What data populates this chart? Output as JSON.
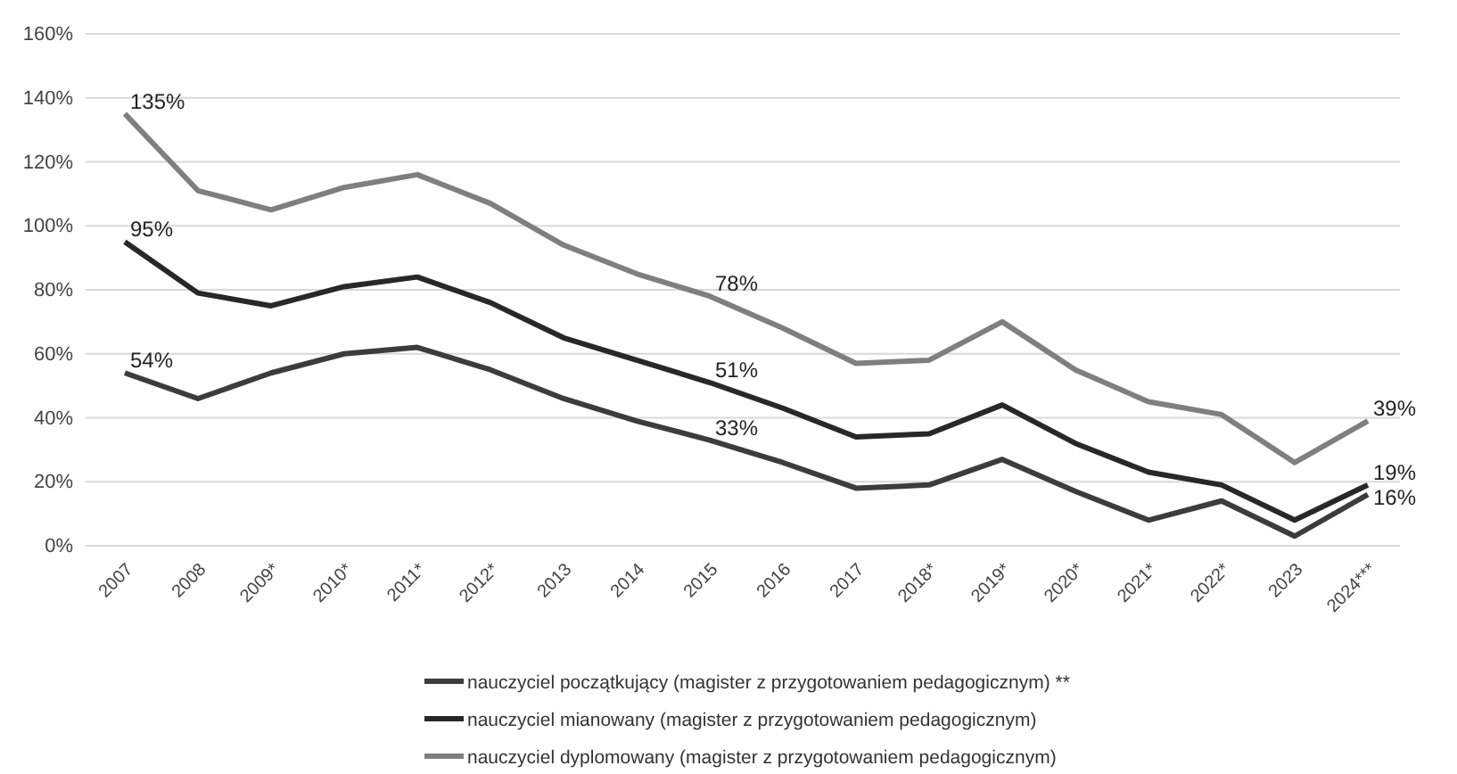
{
  "chart_data": {
    "type": "line",
    "categories": [
      "2007",
      "2008",
      "2009*",
      "2010*",
      "2011*",
      "2012*",
      "2013",
      "2014",
      "2015",
      "2016",
      "2017",
      "2018*",
      "2019*",
      "2020*",
      "2021*",
      "2022*",
      "2023",
      "2024***"
    ],
    "ylim": [
      0,
      160
    ],
    "yticks": [
      {
        "value": 0,
        "label": "0%"
      },
      {
        "value": 20,
        "label": "20%"
      },
      {
        "value": 40,
        "label": "40%"
      },
      {
        "value": 60,
        "label": "60%"
      },
      {
        "value": 80,
        "label": "80%"
      },
      {
        "value": 100,
        "label": "100%"
      },
      {
        "value": 120,
        "label": "120%"
      },
      {
        "value": 140,
        "label": "140%"
      },
      {
        "value": 160,
        "label": "160%"
      }
    ],
    "grid": "y",
    "legend": "bottom",
    "marker": "none",
    "line_style": "solid",
    "series": [
      {
        "name": "nauczyciel początkujący (magister z przygotowaniem pedagogicznym) **",
        "color": "#3c3c3c",
        "values": [
          54,
          46,
          54,
          60,
          62,
          55,
          46,
          39,
          33,
          26,
          18,
          19,
          27,
          17,
          8,
          14,
          3,
          16
        ],
        "value_labels": [
          "54%",
          null,
          null,
          null,
          null,
          null,
          null,
          null,
          "33%",
          null,
          null,
          null,
          null,
          null,
          null,
          null,
          null,
          "16%"
        ]
      },
      {
        "name": "nauczyciel mianowany (magister z przygotowaniem pedagogicznym)",
        "color": "#282828",
        "values": [
          95,
          79,
          75,
          81,
          84,
          76,
          65,
          58,
          51,
          43,
          34,
          35,
          44,
          32,
          23,
          19,
          8,
          19
        ],
        "value_labels": [
          "95%",
          null,
          null,
          null,
          null,
          null,
          null,
          null,
          "51%",
          null,
          null,
          null,
          null,
          null,
          null,
          null,
          null,
          "19%"
        ]
      },
      {
        "name": "nauczyciel dyplomowany (magister z przygotowaniem pedagogicznym)",
        "color": "#7f7f7f",
        "values": [
          135,
          111,
          105,
          112,
          116,
          107,
          94,
          85,
          78,
          68,
          57,
          58,
          70,
          55,
          45,
          41,
          26,
          39
        ],
        "value_labels": [
          "135%",
          null,
          null,
          null,
          null,
          null,
          null,
          null,
          "78%",
          null,
          null,
          null,
          null,
          null,
          null,
          null,
          null,
          "39%"
        ]
      }
    ]
  }
}
